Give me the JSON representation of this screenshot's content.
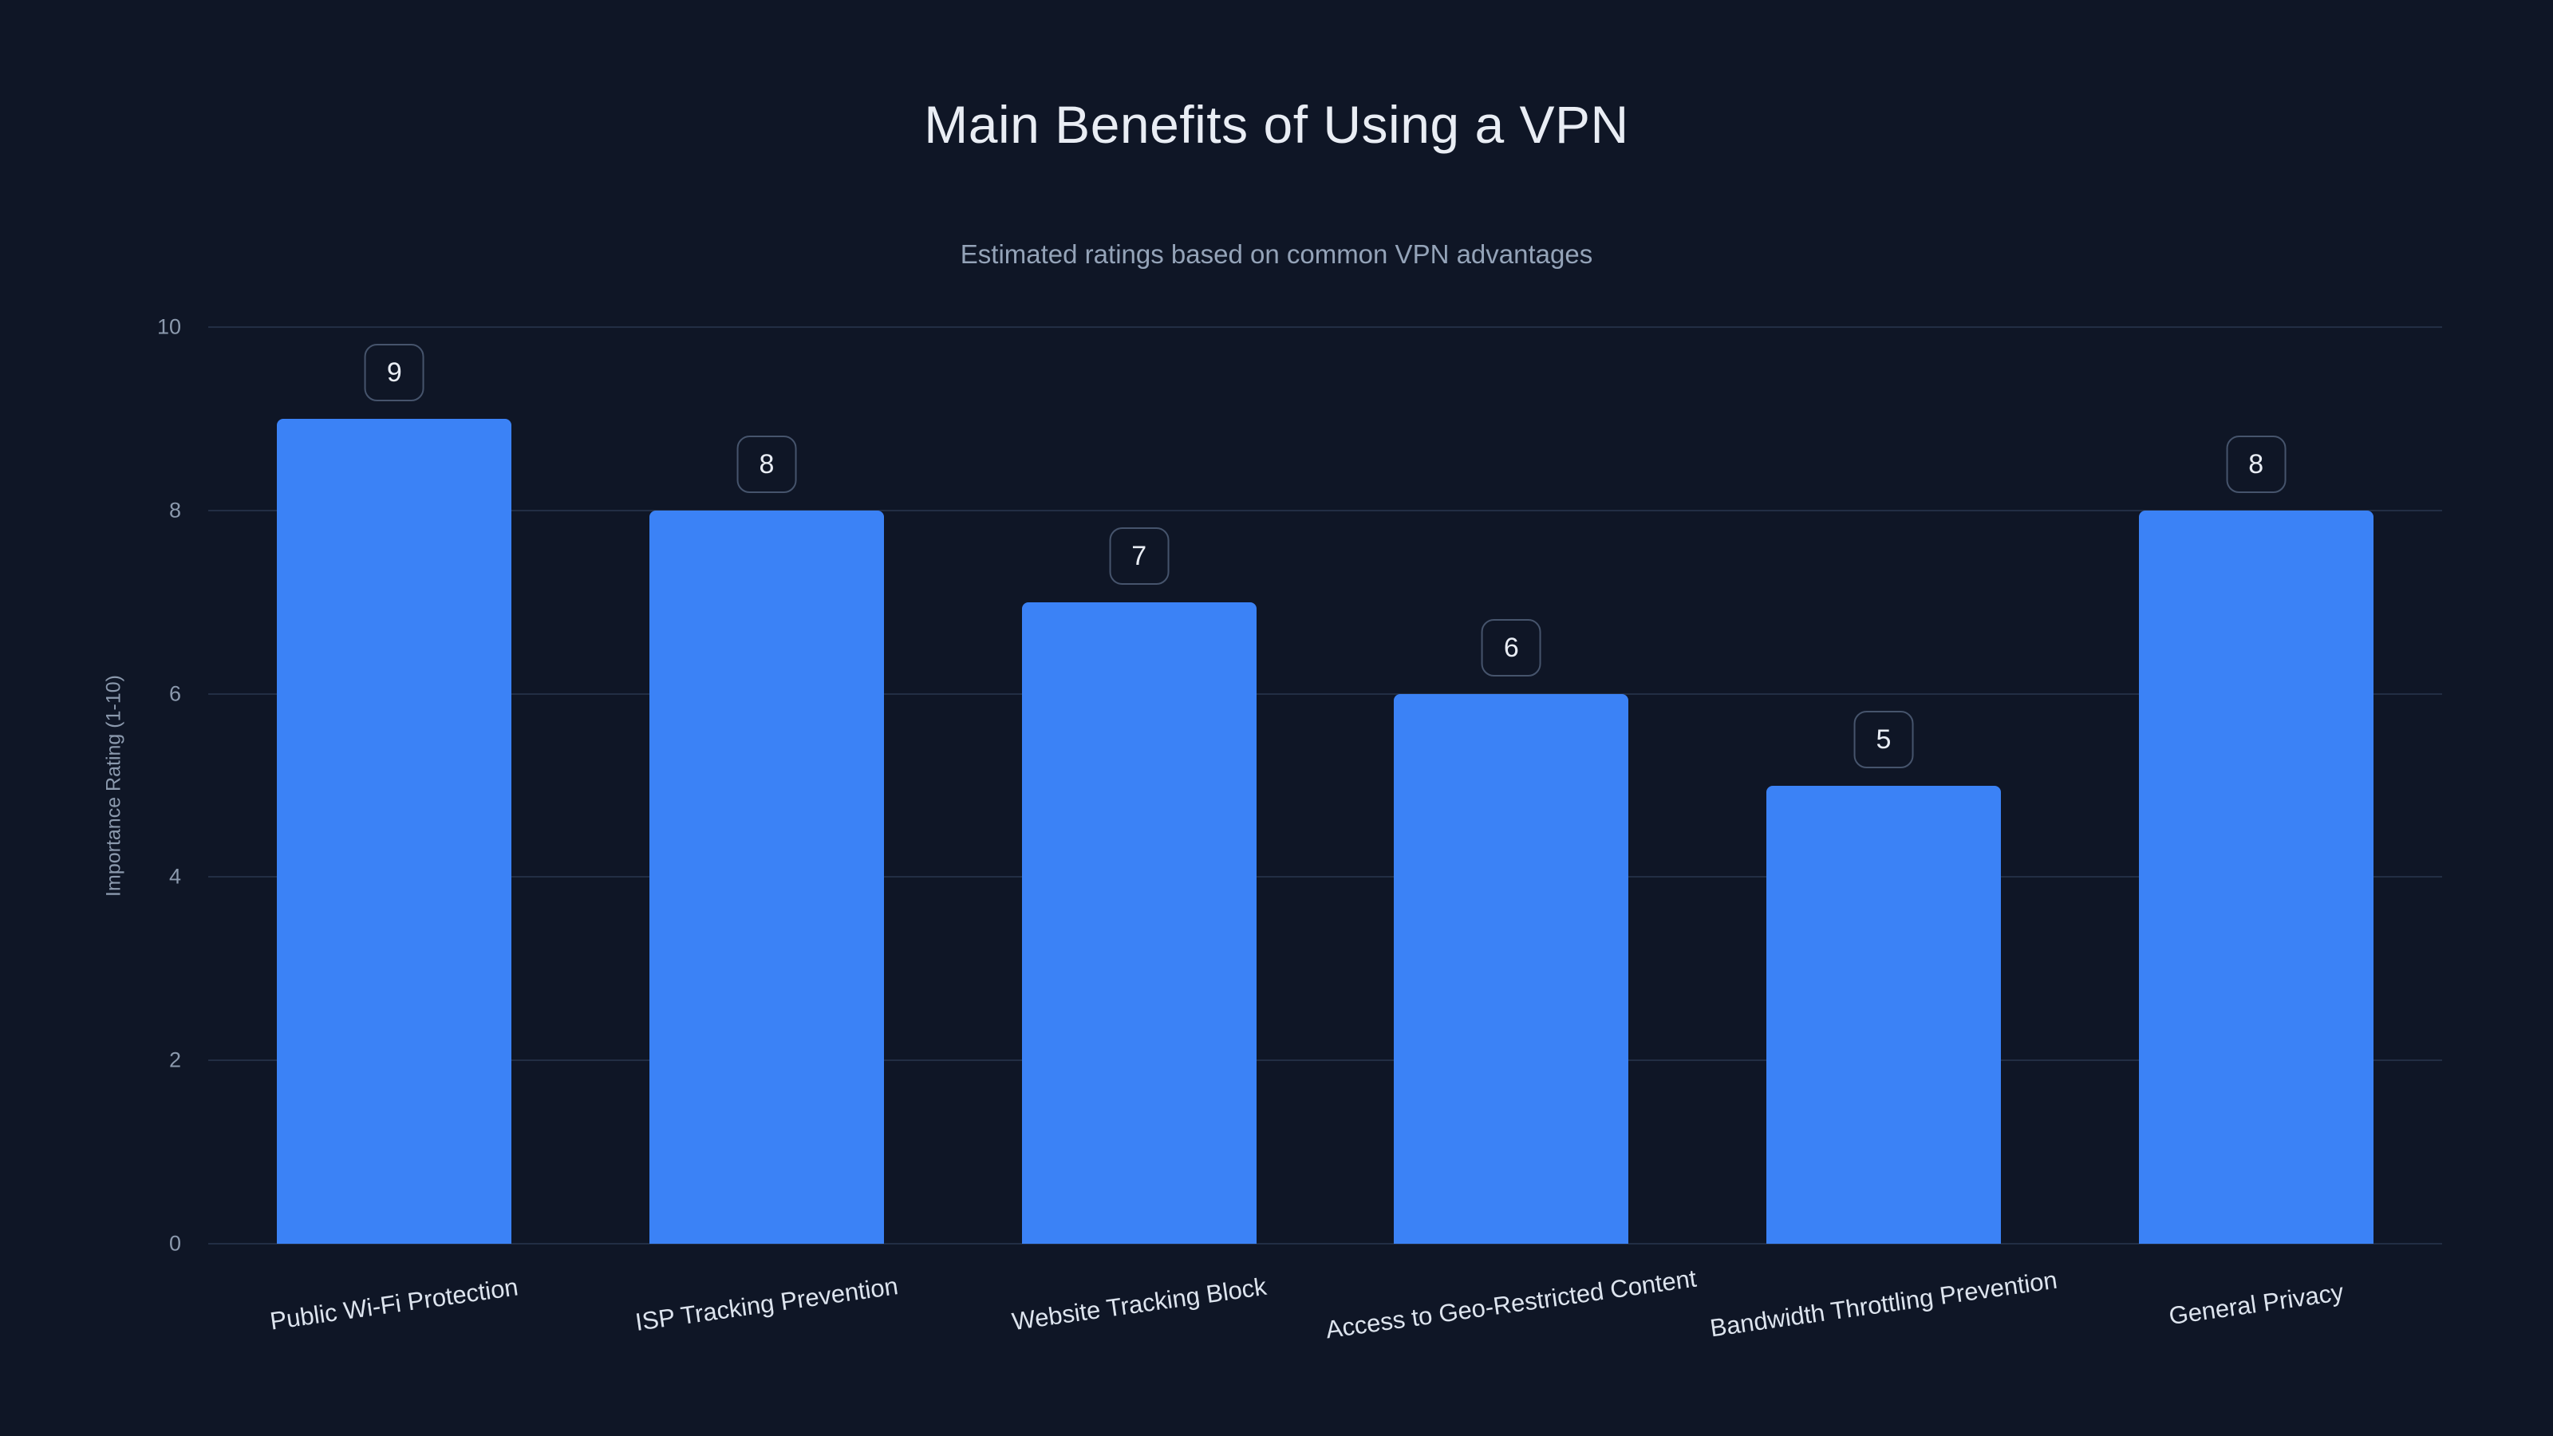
{
  "header": {
    "title": "Main Benefits of Using a VPN",
    "subtitle": "Estimated ratings based on common VPN advantages"
  },
  "chart_data": {
    "type": "bar",
    "title": "Main Benefits of Using a VPN",
    "subtitle": "Estimated ratings based on common VPN advantages",
    "categories": [
      "Public Wi-Fi Protection",
      "ISP Tracking Prevention",
      "Website Tracking Block",
      "Access to Geo-Restricted Content",
      "Bandwidth Throttling Prevention",
      "General Privacy"
    ],
    "values": [
      9,
      8,
      7,
      6,
      5,
      8
    ],
    "value_labels": [
      "9",
      "8",
      "7",
      "6",
      "5",
      "8"
    ],
    "xlabel": "",
    "ylabel": "Importance Rating (1-10)",
    "ylim": [
      0,
      10
    ],
    "yticks": [
      0,
      2,
      4,
      6,
      8,
      10
    ],
    "grid": true,
    "legend": false,
    "colors": {
      "background": "#0f1626",
      "bar": "#3b82f6",
      "gridline": "#222e44",
      "title_text": "#e9edf4",
      "subtitle_text": "#94a3b8",
      "tick_text": "#8b99ad",
      "category_text": "#dde4ee",
      "value_box_border": "#46546c",
      "value_box_text": "#e9edf4"
    }
  }
}
